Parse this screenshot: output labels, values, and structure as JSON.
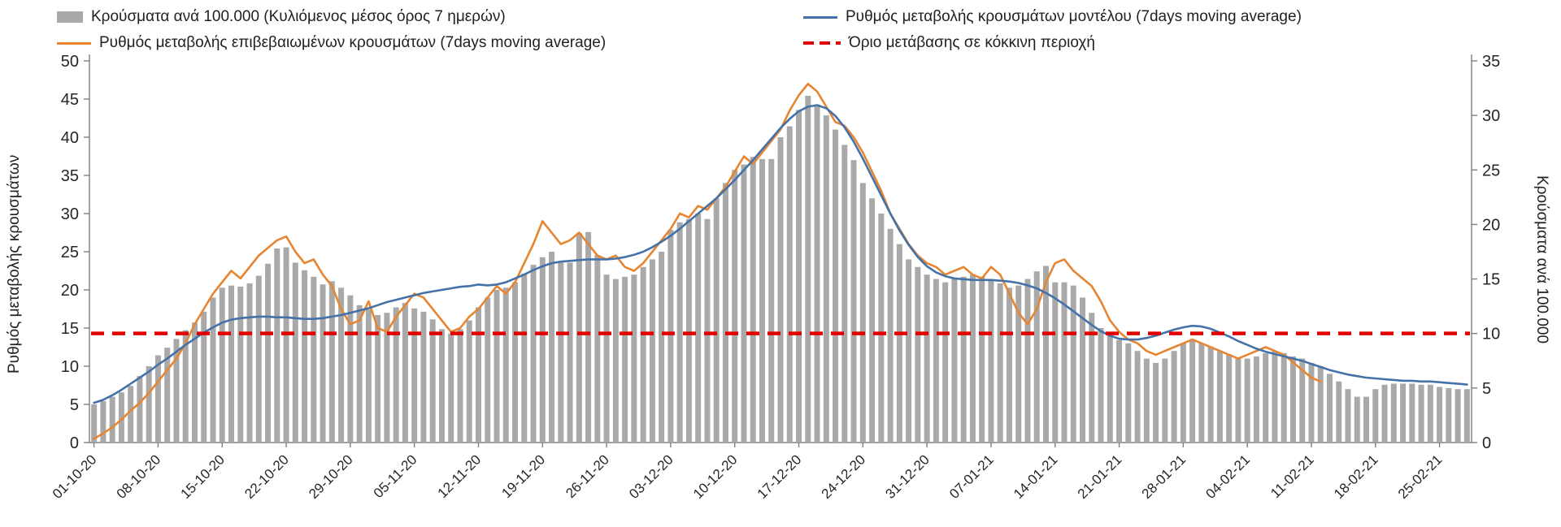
{
  "colors": {
    "bars": "#a9a9a9",
    "model_line": "#4472a8",
    "confirmed_line": "#e78531",
    "threshold_line": "#e00000",
    "axis": "#7f7f7f",
    "tick_text": "#262626"
  },
  "chart_data": {
    "type": "bar",
    "title": "",
    "x_start": "01-10-20",
    "x_end": "28-02-21",
    "x_tick_labels": [
      "01-10-20",
      "08-10-20",
      "15-10-20",
      "22-10-20",
      "29-10-20",
      "05-11-20",
      "12-11-20",
      "19-11-20",
      "26-11-20",
      "03-12-20",
      "10-12-20",
      "17-12-20",
      "24-12-20",
      "31-12-20",
      "07-01-21",
      "14-01-21",
      "21-01-21",
      "28-01-21",
      "04-02-21",
      "11-02-21",
      "18-02-21",
      "25-02-21"
    ],
    "x_tick_positions": [
      0,
      7,
      14,
      21,
      28,
      35,
      42,
      49,
      56,
      63,
      70,
      77,
      84,
      91,
      98,
      105,
      112,
      119,
      126,
      133,
      140,
      147
    ],
    "left_axis": {
      "label": "Ρυθμός μεταβολής κρουσμάτων",
      "range": [
        0,
        50
      ],
      "ticks": [
        0,
        5,
        10,
        15,
        20,
        25,
        30,
        35,
        40,
        45,
        50
      ]
    },
    "right_axis": {
      "label": "Κρούσματα ανά 100.000",
      "range": [
        0,
        35
      ],
      "ticks": [
        0,
        5,
        10,
        15,
        20,
        25,
        30,
        35
      ]
    },
    "threshold": {
      "label": "Όριο μετάβασης σε κόκκινη περιοχή",
      "value_left_axis": 14.3
    },
    "series": [
      {
        "name": "Κρούσματα ανά 100.000 (Κυλιόμενος μέσος όρος 7 ημερών)",
        "type": "bar",
        "axis": "right",
        "color": "#a9a9a9",
        "values": [
          3.5,
          3.8,
          4.2,
          4.6,
          5.2,
          6.1,
          7.0,
          8.0,
          8.7,
          9.5,
          10.3,
          11.0,
          12.0,
          13.3,
          14.2,
          14.4,
          14.3,
          14.6,
          15.3,
          16.4,
          17.8,
          17.9,
          16.5,
          15.8,
          15.2,
          14.5,
          14.8,
          14.2,
          13.5,
          12.6,
          12.2,
          11.7,
          11.9,
          12.4,
          12.8,
          12.3,
          12.0,
          11.3,
          10.4,
          10.0,
          10.4,
          11.2,
          12.4,
          13.3,
          14.0,
          14.2,
          14.7,
          15.5,
          16.3,
          17.0,
          17.5,
          16.5,
          16.5,
          19.2,
          19.3,
          17.2,
          15.4,
          15.0,
          15.2,
          15.4,
          16.1,
          16.8,
          17.5,
          19.5,
          20.2,
          20.5,
          21.0,
          20.5,
          22.4,
          23.8,
          25.0,
          25.5,
          26.2,
          26.0,
          26.0,
          28.0,
          29.0,
          30.5,
          31.8,
          31.0,
          30.0,
          28.7,
          27.3,
          25.9,
          23.8,
          22.4,
          21.0,
          19.6,
          18.2,
          16.8,
          16.1,
          15.4,
          15.0,
          14.7,
          15.0,
          15.2,
          15.4,
          15.2,
          15.0,
          14.6,
          14.2,
          14.4,
          15.0,
          15.7,
          16.2,
          14.7,
          14.7,
          14.4,
          13.3,
          11.9,
          10.5,
          9.8,
          9.4,
          9.1,
          8.4,
          7.7,
          7.3,
          7.7,
          8.4,
          9.1,
          9.4,
          9.1,
          8.8,
          8.4,
          8.1,
          7.7,
          7.7,
          7.9,
          8.2,
          8.4,
          8.2,
          7.9,
          7.7,
          7.3,
          7.0,
          6.3,
          5.6,
          4.9,
          4.2,
          4.2,
          4.9,
          5.3,
          5.4,
          5.4,
          5.4,
          5.3,
          5.3,
          5.1,
          5.0,
          4.9,
          4.9
        ]
      },
      {
        "name": "Ρυθμός μεταβολής επιβεβαιωμένων κρουσμάτων (7days moving average)",
        "type": "line",
        "axis": "left",
        "color": "#e78531",
        "values": [
          0.5,
          1.2,
          2.0,
          3.0,
          4.2,
          5.2,
          6.5,
          8.0,
          9.5,
          11.0,
          13.0,
          15.5,
          17.5,
          19.5,
          21.0,
          22.5,
          21.5,
          23.0,
          24.5,
          25.5,
          26.5,
          27.0,
          25.0,
          23.5,
          24.0,
          22.0,
          20.5,
          17.5,
          15.5,
          16.0,
          18.5,
          15.0,
          14.5,
          16.5,
          18.0,
          19.5,
          19.0,
          17.5,
          16.0,
          14.5,
          15.0,
          16.5,
          17.5,
          19.0,
          20.5,
          19.5,
          21.0,
          23.5,
          26.0,
          29.0,
          27.5,
          26.0,
          26.5,
          27.5,
          26.0,
          24.5,
          24.0,
          24.5,
          23.0,
          22.5,
          23.5,
          25.0,
          26.5,
          28.0,
          30.0,
          29.5,
          31.0,
          30.5,
          32.0,
          33.5,
          35.5,
          37.5,
          36.5,
          38.0,
          39.5,
          41.0,
          43.5,
          45.5,
          47.0,
          46.0,
          44.0,
          42.0,
          41.5,
          40.0,
          38.0,
          35.5,
          33.0,
          30.0,
          28.0,
          26.0,
          24.5,
          23.5,
          23.0,
          22.0,
          22.5,
          23.0,
          22.0,
          21.5,
          23.0,
          22.0,
          19.5,
          17.0,
          15.5,
          17.5,
          21.0,
          23.5,
          24.0,
          22.5,
          21.5,
          20.5,
          18.5,
          16.0,
          14.5,
          13.5,
          13.0,
          12.0,
          11.5,
          12.0,
          12.5,
          13.0,
          13.5,
          13.0,
          12.5,
          12.0,
          11.5,
          11.0,
          11.5,
          12.0,
          12.5,
          12.0,
          11.5,
          10.5,
          9.5,
          8.5,
          8.0,
          null,
          null,
          null,
          null,
          null,
          null,
          null,
          null,
          null,
          null,
          null,
          null,
          null,
          null,
          null,
          null
        ]
      },
      {
        "name": "Ρυθμός μεταβολής κρουσμάτων μοντέλου (7days moving average)",
        "type": "line",
        "axis": "left",
        "color": "#4472a8",
        "values": [
          5.2,
          5.6,
          6.2,
          6.9,
          7.7,
          8.5,
          9.3,
          10.2,
          11.0,
          11.9,
          12.8,
          13.6,
          14.4,
          15.1,
          15.7,
          16.1,
          16.3,
          16.4,
          16.5,
          16.5,
          16.4,
          16.4,
          16.3,
          16.2,
          16.2,
          16.3,
          16.5,
          16.7,
          17.0,
          17.3,
          17.6,
          18.0,
          18.4,
          18.7,
          19.0,
          19.3,
          19.6,
          19.8,
          20.0,
          20.2,
          20.4,
          20.5,
          20.7,
          20.6,
          20.7,
          21.0,
          21.5,
          22.0,
          22.6,
          23.1,
          23.5,
          23.7,
          23.8,
          23.9,
          24.0,
          24.0,
          24.0,
          24.1,
          24.3,
          24.6,
          25.0,
          25.6,
          26.3,
          27.1,
          28.0,
          29.0,
          30.0,
          31.0,
          32.0,
          33.2,
          34.4,
          35.7,
          37.0,
          38.4,
          39.8,
          41.2,
          42.4,
          43.4,
          44.0,
          44.2,
          43.8,
          42.8,
          41.3,
          39.4,
          37.2,
          34.8,
          32.4,
          30.0,
          27.8,
          25.9,
          24.3,
          23.1,
          22.3,
          21.8,
          21.5,
          21.4,
          21.3,
          21.3,
          21.3,
          21.2,
          21.1,
          20.9,
          20.6,
          20.2,
          19.6,
          18.9,
          18.1,
          17.2,
          16.3,
          15.4,
          14.6,
          14.0,
          13.6,
          13.5,
          13.5,
          13.7,
          14.0,
          14.4,
          14.8,
          15.1,
          15.3,
          15.2,
          14.9,
          14.4,
          13.9,
          13.3,
          12.8,
          12.3,
          11.9,
          11.6,
          11.3,
          11.0,
          10.7,
          10.3,
          9.9,
          9.5,
          9.2,
          8.9,
          8.7,
          8.5,
          8.4,
          8.3,
          8.2,
          8.1,
          8.1,
          8.0,
          8.0,
          7.9,
          7.8,
          7.7,
          7.6
        ]
      }
    ]
  }
}
